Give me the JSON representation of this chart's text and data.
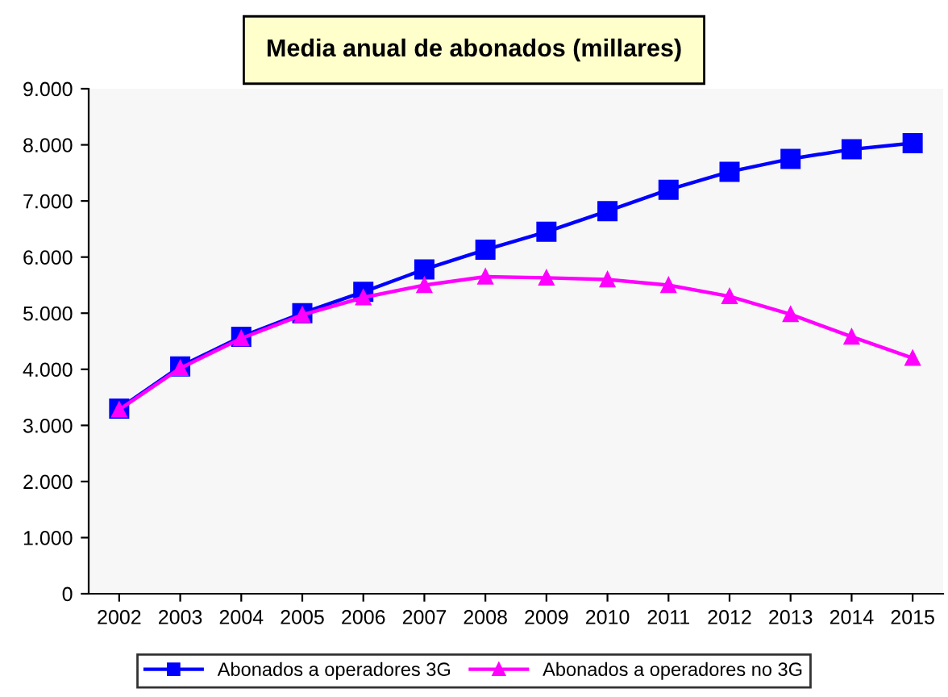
{
  "chart_data": {
    "type": "line",
    "title": "Media anual de abonados (millares)",
    "categories": [
      "2002",
      "2003",
      "2004",
      "2005",
      "2006",
      "2007",
      "2008",
      "2009",
      "2010",
      "2011",
      "2012",
      "2013",
      "2014",
      "2015"
    ],
    "series": [
      {
        "name": "Abonados a operadores 3G",
        "color": "#0000ff",
        "marker": "square",
        "values": [
          3300,
          4050,
          4580,
          5000,
          5380,
          5780,
          6130,
          6450,
          6820,
          7200,
          7520,
          7750,
          7920,
          8030
        ]
      },
      {
        "name": "Abonados a operadores no 3G",
        "color": "#ff00ff",
        "marker": "triangle",
        "values": [
          3280,
          4020,
          4550,
          4970,
          5280,
          5500,
          5650,
          5630,
          5600,
          5500,
          5300,
          4980,
          4580,
          4200
        ]
      }
    ],
    "ylim": [
      0,
      9000
    ],
    "yticks": [
      0,
      {
        "value": 1000,
        "label": "1.000"
      },
      {
        "value": 2000,
        "label": "2.000"
      },
      {
        "value": 3000,
        "label": "3.000"
      },
      {
        "value": 4000,
        "label": "4.000"
      },
      {
        "value": 5000,
        "label": "5.000"
      },
      {
        "value": 6000,
        "label": "6.000"
      },
      {
        "value": 7000,
        "label": "7.000"
      },
      {
        "value": 8000,
        "label": "8.000"
      },
      {
        "value": 9000,
        "label": "9.000"
      }
    ],
    "grid": false,
    "legend": "bottom",
    "line_style": "solid"
  }
}
